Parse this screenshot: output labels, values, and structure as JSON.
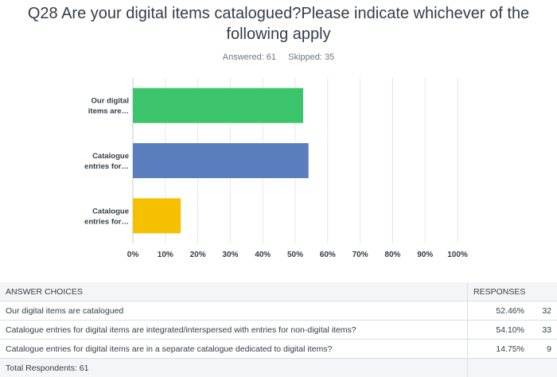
{
  "header": {
    "title_line1": "Q28 Are your digital items catalogued?Please indicate whichever of the",
    "title_line2": "following apply",
    "answered": "Answered: 61",
    "skipped": "Skipped: 35"
  },
  "chart_data": {
    "type": "bar",
    "orientation": "horizontal",
    "categories": [
      "Our digital items are…",
      "Catalogue entries for…",
      "Catalogue entries for…"
    ],
    "category_label_lines": [
      [
        "Our digital",
        "items are…"
      ],
      [
        "Catalogue",
        "entries for…"
      ],
      [
        "Catalogue",
        "entries for…"
      ]
    ],
    "values": [
      52.46,
      54.1,
      14.75
    ],
    "bar_colors": [
      "#3bc46b",
      "#5a7dbd",
      "#f5c000"
    ],
    "x_ticks": [
      "0%",
      "10%",
      "20%",
      "30%",
      "40%",
      "50%",
      "60%",
      "70%",
      "80%",
      "90%",
      "100%"
    ],
    "xlim": [
      0,
      100
    ],
    "grid": true
  },
  "table": {
    "col_answer": "ANSWER CHOICES",
    "col_responses": "RESPONSES",
    "rows": [
      {
        "choice": "Our digital items are catalogued",
        "percent": "52.46%",
        "count": "32"
      },
      {
        "choice": "Catalogue entries for digital items are integrated/interspersed with entries for non-digital items?",
        "percent": "54.10%",
        "count": "33"
      },
      {
        "choice": "Catalogue entries for digital items are in a separate catalogue dedicated to digital items?",
        "percent": "14.75%",
        "count": "9"
      }
    ],
    "total": "Total Respondents: 61"
  }
}
